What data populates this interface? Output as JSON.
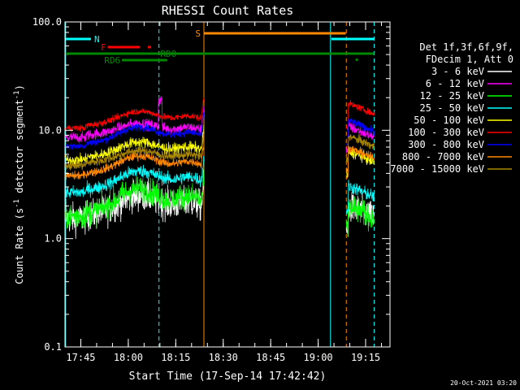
{
  "chart_data": {
    "type": "line",
    "title": "RHESSI Count Rates",
    "xlabel": "Start Time (17-Sep-14 17:42:42)",
    "ylabel_main": "Count Rate (s",
    "ylabel_sup1": "-1",
    "ylabel_mid": " detector segment",
    "ylabel_sup2": "-1",
    "ylabel_end": ")",
    "yscale": "log",
    "ylim": [
      0.1,
      100
    ],
    "xlim_minutes": [
      -2.7,
      100
    ],
    "y_ticks": [
      {
        "v": 0.1,
        "label": "0.1"
      },
      {
        "v": 1,
        "label": "1.0"
      },
      {
        "v": 10,
        "label": "10.0"
      },
      {
        "v": 100,
        "label": "100.0"
      }
    ],
    "x_ticks": [
      {
        "m": 2.3,
        "label": "17:45"
      },
      {
        "m": 17.3,
        "label": "18:00"
      },
      {
        "m": 32.3,
        "label": "18:15"
      },
      {
        "m": 47.3,
        "label": "18:30"
      },
      {
        "m": 62.3,
        "label": "18:45"
      },
      {
        "m": 77.3,
        "label": "19:00"
      },
      {
        "m": 92.3,
        "label": "19:15"
      }
    ],
    "legend_position": "right",
    "legend_header": [
      "Det 1f,3f,6f,9f,",
      "FDecim 1, Att 0"
    ],
    "series": [
      {
        "name": "3 - 6 keV",
        "color": "#ffffff",
        "base1": 1.6,
        "hump": 0.9,
        "base2": 2.0,
        "noise": 0.14
      },
      {
        "name": "6 - 12 keV",
        "color": "#ff00ff",
        "base1": 9.0,
        "hump": 2.5,
        "base2": 11.0,
        "noise": 0.05
      },
      {
        "name": "12 - 25 keV",
        "color": "#00ff00",
        "base1": 1.7,
        "hump": 1.2,
        "base2": 2.0,
        "noise": 0.12
      },
      {
        "name": "25 - 50 keV",
        "color": "#00ffff",
        "base1": 2.8,
        "hump": 1.4,
        "base2": 3.1,
        "noise": 0.06
      },
      {
        "name": "50 - 100 keV",
        "color": "#ffff00",
        "base1": 5.6,
        "hump": 2.2,
        "base2": 6.5,
        "noise": 0.05
      },
      {
        "name": "100 - 300 keV",
        "color": "#ff0000",
        "base1": 11.0,
        "hump": 4.0,
        "base2": 18.0,
        "noise": 0.03
      },
      {
        "name": "300 - 800 keV",
        "color": "#0000ff",
        "base1": 7.5,
        "hump": 3.2,
        "base2": 12.5,
        "noise": 0.035
      },
      {
        "name": "800 - 7000 keV",
        "color": "#ff8800",
        "base1": 4.0,
        "hump": 1.8,
        "base2": 7.0,
        "noise": 0.04
      },
      {
        "name": "7000 - 15000 keV",
        "color": "#aa8800",
        "base1": 5.0,
        "hump": 1.5,
        "base2": 9.0,
        "noise": 0.04
      }
    ],
    "segments_minutes": [
      [
        -2.5,
        41.2
      ],
      [
        86.2,
        95.0
      ]
    ],
    "vertical_lines": [
      {
        "m": -2.5,
        "color": "#00ffff",
        "style": "solid"
      },
      {
        "m": 27.0,
        "color": "#00ffff",
        "style": "dashed"
      },
      {
        "m": 41.2,
        "color": "#ff8800",
        "style": "solid"
      },
      {
        "m": 81.2,
        "color": "#00ffff",
        "style": "solid"
      },
      {
        "m": 86.2,
        "color": "#ff8800",
        "style": "dashed"
      },
      {
        "m": 95.0,
        "color": "#00ffff",
        "style": "dashed"
      }
    ],
    "flag_bars": [
      {
        "label": "N",
        "color": "#00ffff",
        "ranges": [
          [
            -2.5,
            5.5
          ],
          [
            81.5,
            95.0
          ]
        ],
        "level": 0
      },
      {
        "label": "S",
        "color": "#ff8800",
        "ranges": [
          [
            41.2,
            86.0
          ]
        ],
        "level": -1
      },
      {
        "label": "F",
        "color": "#ff0000",
        "ranges": [
          [
            10.8,
            21.0
          ],
          [
            23.5,
            24.5
          ]
        ],
        "level": 1
      },
      {
        "label": "RD0",
        "color": "#008800",
        "ranges": [
          [
            -2.5,
            95.0
          ]
        ],
        "level": 2
      },
      {
        "label": "RD6",
        "color": "#008800",
        "ranges": [
          [
            15.3,
            29.6
          ]
        ],
        "level": 3
      }
    ],
    "timestamp": "20-Oct-2021 03:20"
  }
}
